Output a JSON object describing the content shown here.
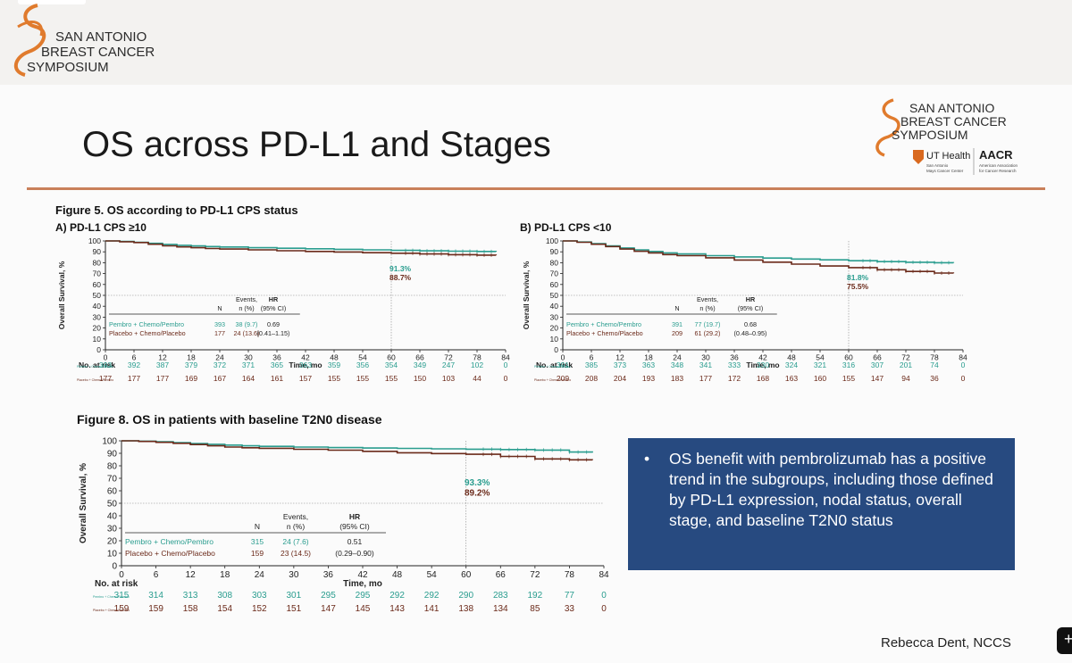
{
  "symposium": {
    "line1": "SAN ANTONIO",
    "line2": "BREAST CANCER",
    "line3": "SYMPOSIUM",
    "reg": "®"
  },
  "inner_logo": {
    "line1": "SAN ANTONIO",
    "line2": "BREAST CANCER",
    "line3": "SYMPOSIUM",
    "ut": "UT Health",
    "ut_sub1": "San Antonio",
    "ut_sub2": "Mays Cancer Center",
    "aacr": "AACR",
    "aacr_sub1": "American Association",
    "aacr_sub2": "for Cancer Research"
  },
  "slide_title": "OS across PD-L1 and Stages",
  "figure5_title": "Figure 5. OS according to PD-L1 CPS status",
  "figure8_title": "Figure 8. OS in patients with baseline T2N0 disease",
  "callout": {
    "bullet": "•",
    "text": "OS benefit with pembrolizumab has a positive trend in the subgroups, including those defined by PD-L1 expression, nodal status, overall stage, and baseline T2N0 status"
  },
  "footer": "Rebecca Dent, NCCS",
  "chart_data": [
    {
      "id": "A",
      "type": "line",
      "title": "A) PD-L1 CPS ≥10",
      "xlabel": "Time, mo",
      "ylabel": "Overall Survival, %",
      "xlim": [
        0,
        84
      ],
      "ylim": [
        0,
        100
      ],
      "xticks": [
        0,
        6,
        12,
        18,
        24,
        30,
        36,
        42,
        48,
        54,
        60,
        66,
        72,
        78,
        84
      ],
      "yticks": [
        0,
        10,
        20,
        30,
        40,
        50,
        60,
        70,
        80,
        90,
        100
      ],
      "landmark_x": 60,
      "landmark_labels": [
        "91.3%",
        "88.7%"
      ],
      "series": [
        {
          "name": "Pembro + Chemo/Pembro",
          "color": "#2a9d8f",
          "n": "393",
          "events": "38 (9.7)",
          "hr": "0.69",
          "ci": "(0.41–1.15)",
          "x": [
            0,
            3,
            6,
            9,
            12,
            15,
            18,
            21,
            24,
            30,
            36,
            42,
            48,
            54,
            60,
            66,
            72,
            78,
            82
          ],
          "y": [
            100,
            99.5,
            98.8,
            97.8,
            96.8,
            96.0,
            95.4,
            94.8,
            94.4,
            93.8,
            93.3,
            92.8,
            92.3,
            91.8,
            91.3,
            90.9,
            90.6,
            90.3,
            90.2
          ],
          "risk": [
            "393",
            "392",
            "387",
            "379",
            "372",
            "371",
            "365",
            "363",
            "359",
            "356",
            "354",
            "349",
            "247",
            "102",
            "0"
          ]
        },
        {
          "name": "Placebo + Chemo/Placebo",
          "color": "#6b2a1a",
          "n": "177",
          "events": "24 (13.6)",
          "hr": "",
          "ci": "(0.41–1.15)",
          "x": [
            0,
            3,
            6,
            9,
            12,
            15,
            18,
            21,
            24,
            30,
            36,
            42,
            48,
            54,
            60,
            66,
            72,
            78,
            82
          ],
          "y": [
            100,
            99.3,
            98.5,
            97.0,
            95.5,
            94.5,
            93.8,
            93.0,
            92.5,
            91.8,
            91.0,
            90.3,
            89.8,
            89.2,
            88.7,
            88.0,
            87.4,
            87.0,
            86.9
          ],
          "risk": [
            "177",
            "177",
            "177",
            "169",
            "167",
            "164",
            "161",
            "157",
            "155",
            "155",
            "155",
            "150",
            "103",
            "44",
            "0"
          ]
        }
      ],
      "legend_headers": {
        "n": "N",
        "events": "Events,",
        "events2": "n (%)",
        "hr": "HR",
        "ci": "(95% CI)"
      },
      "at_risk_label": "No. at risk",
      "row_labels": [
        "Pembro + Chemo/Pembro",
        "Placebo + Chemo/Pembro"
      ]
    },
    {
      "id": "B",
      "type": "line",
      "title": "B) PD-L1 CPS <10",
      "xlabel": "Time, mo",
      "ylabel": "Overall Survival, %",
      "xlim": [
        0,
        84
      ],
      "ylim": [
        0,
        100
      ],
      "xticks": [
        0,
        6,
        12,
        18,
        24,
        30,
        36,
        42,
        48,
        54,
        60,
        66,
        72,
        78,
        84
      ],
      "yticks": [
        0,
        10,
        20,
        30,
        40,
        50,
        60,
        70,
        80,
        90,
        100
      ],
      "landmark_x": 60,
      "landmark_labels": [
        "81.8%",
        "75.5%"
      ],
      "series": [
        {
          "name": "Pembro + Chemo/Pembro",
          "color": "#2a9d8f",
          "n": "391",
          "events": "77 (19.7)",
          "hr": "0.68",
          "ci": "(0.48–0.95)",
          "x": [
            0,
            3,
            6,
            9,
            12,
            15,
            18,
            21,
            24,
            30,
            36,
            42,
            48,
            54,
            60,
            66,
            72,
            78,
            82
          ],
          "y": [
            100,
            99.0,
            97.5,
            95.5,
            93.5,
            91.8,
            90.3,
            89.0,
            88.0,
            86.5,
            85.3,
            84.3,
            83.4,
            82.6,
            81.8,
            81.0,
            80.4,
            80.0,
            79.8
          ],
          "risk": [
            "391",
            "385",
            "373",
            "363",
            "348",
            "341",
            "333",
            "330",
            "324",
            "321",
            "316",
            "307",
            "201",
            "74",
            "0"
          ]
        },
        {
          "name": "Placebo + Chemo/Placebo",
          "color": "#6b2a1a",
          "n": "209",
          "events": "61 (29.2)",
          "hr": "",
          "ci": "(0.48–0.95)",
          "x": [
            0,
            3,
            6,
            9,
            12,
            15,
            18,
            21,
            24,
            30,
            36,
            42,
            48,
            54,
            60,
            66,
            72,
            78,
            82
          ],
          "y": [
            100,
            98.8,
            97.0,
            94.8,
            92.5,
            90.5,
            89.0,
            87.5,
            86.5,
            84.5,
            82.5,
            80.5,
            78.7,
            77.0,
            75.5,
            73.5,
            72.0,
            70.5,
            70.3
          ],
          "risk": [
            "209",
            "208",
            "204",
            "193",
            "183",
            "177",
            "172",
            "168",
            "163",
            "160",
            "155",
            "147",
            "94",
            "36",
            "0"
          ]
        }
      ],
      "legend_headers": {
        "n": "N",
        "events": "Events,",
        "events2": "n (%)",
        "hr": "HR",
        "ci": "(95% CI)"
      },
      "at_risk_label": "No. at risk",
      "row_labels": [
        "Pembro + Chemo/Pembro",
        "Placebo + Chemo/Pembro"
      ]
    },
    {
      "id": "C",
      "type": "line",
      "title": "",
      "xlabel": "Time, mo",
      "ylabel": "Overall Survival, %",
      "xlim": [
        0,
        84
      ],
      "ylim": [
        0,
        100
      ],
      "xticks": [
        0,
        6,
        12,
        18,
        24,
        30,
        36,
        42,
        48,
        54,
        60,
        66,
        72,
        78,
        84
      ],
      "yticks": [
        0,
        10,
        20,
        30,
        40,
        50,
        60,
        70,
        80,
        90,
        100
      ],
      "landmark_x": 60,
      "landmark_labels": [
        "93.3%",
        "89.2%"
      ],
      "series": [
        {
          "name": "Pembro + Chemo/Pembro",
          "color": "#2a9d8f",
          "n": "315",
          "events": "24 (7.6)",
          "hr": "0.51",
          "ci": "(0.29–0.90)",
          "x": [
            0,
            3,
            6,
            9,
            12,
            15,
            18,
            21,
            24,
            30,
            36,
            42,
            48,
            54,
            60,
            66,
            72,
            78,
            82
          ],
          "y": [
            100,
            99.7,
            99.2,
            98.5,
            97.8,
            97.2,
            96.6,
            96.0,
            95.6,
            95.0,
            94.6,
            94.2,
            93.9,
            93.6,
            93.3,
            93.0,
            92.6,
            91.0,
            90.6
          ],
          "risk": [
            "315",
            "314",
            "313",
            "308",
            "303",
            "301",
            "295",
            "295",
            "292",
            "292",
            "290",
            "283",
            "192",
            "77",
            "0"
          ]
        },
        {
          "name": "Placebo + Chemo/Placebo",
          "color": "#6b2a1a",
          "n": "159",
          "events": "23 (14.5)",
          "hr": "",
          "ci": "(0.29–0.90)",
          "x": [
            0,
            3,
            6,
            9,
            12,
            15,
            18,
            21,
            24,
            30,
            36,
            42,
            48,
            54,
            60,
            66,
            72,
            78,
            82
          ],
          "y": [
            100,
            99.5,
            98.8,
            98.0,
            97.0,
            96.0,
            95.0,
            94.4,
            94.0,
            93.2,
            92.5,
            91.6,
            90.4,
            89.8,
            89.2,
            87.5,
            85.5,
            84.8,
            84.6
          ],
          "risk": [
            "159",
            "159",
            "158",
            "154",
            "152",
            "151",
            "147",
            "145",
            "143",
            "141",
            "138",
            "134",
            "85",
            "33",
            "0"
          ]
        }
      ],
      "legend_headers": {
        "n": "N",
        "events": "Events,",
        "events2": "n (%)",
        "hr": "HR",
        "ci": "(95% CI)"
      },
      "at_risk_label": "No. at risk",
      "row_labels": [
        "Pembro + Chemo/Pembro",
        "Placebo + Chemo/Pembro"
      ]
    }
  ]
}
